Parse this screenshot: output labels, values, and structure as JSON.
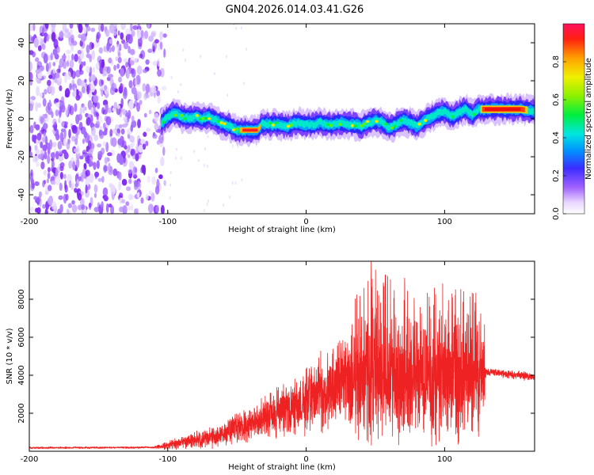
{
  "title": "GN04.2026.014.03.41.G26",
  "colors": {
    "scatter": "#9b3cff",
    "line": "#ee2222",
    "frame": "#000000"
  },
  "chart_data": [
    {
      "type": "heatmap",
      "xlabel": "Height of straight line (km)",
      "ylabel": "Frequency (Hz)",
      "xlim": [
        -200,
        165
      ],
      "ylim": [
        -50,
        50
      ],
      "xticks": [
        -200,
        -100,
        0,
        100
      ],
      "xtick_labels": [
        "-200",
        "-100",
        "0",
        "100"
      ],
      "yticks": [
        -40,
        -20,
        0,
        20,
        40
      ],
      "ytick_labels": [
        "-40",
        "-20",
        "0",
        "20",
        "40"
      ],
      "noise_region_x": [
        -200,
        -102
      ],
      "ridge": [
        [
          -105,
          -3
        ],
        [
          -100,
          1
        ],
        [
          -95,
          3
        ],
        [
          -90,
          1
        ],
        [
          -85,
          0
        ],
        [
          -80,
          1
        ],
        [
          -75,
          0
        ],
        [
          -70,
          1
        ],
        [
          -65,
          -1
        ],
        [
          -60,
          -3
        ],
        [
          -55,
          -4
        ],
        [
          -50,
          -6
        ],
        [
          -45,
          -6
        ],
        [
          -40,
          -6
        ],
        [
          -35,
          -6
        ],
        [
          -32,
          -3
        ],
        [
          -25,
          -3
        ],
        [
          -20,
          -3
        ],
        [
          -15,
          -4
        ],
        [
          -10,
          -3
        ],
        [
          -5,
          -2
        ],
        [
          0,
          -3
        ],
        [
          5,
          -3
        ],
        [
          10,
          -2
        ],
        [
          15,
          -3
        ],
        [
          20,
          -3
        ],
        [
          25,
          -2
        ],
        [
          30,
          -3
        ],
        [
          35,
          -3
        ],
        [
          40,
          -4
        ],
        [
          45,
          -2
        ],
        [
          50,
          -1
        ],
        [
          55,
          -2
        ],
        [
          60,
          -5
        ],
        [
          65,
          -3
        ],
        [
          70,
          -1
        ],
        [
          75,
          -2
        ],
        [
          80,
          -4
        ],
        [
          85,
          -1
        ],
        [
          90,
          1
        ],
        [
          95,
          3
        ],
        [
          100,
          4
        ],
        [
          105,
          1
        ],
        [
          110,
          3
        ],
        [
          115,
          5
        ],
        [
          120,
          2
        ],
        [
          125,
          5
        ],
        [
          135,
          5
        ],
        [
          145,
          5
        ],
        [
          155,
          5
        ],
        [
          165,
          4
        ]
      ],
      "colorbar": {
        "label": "Normalized spectral amplitude",
        "range": [
          0,
          1
        ],
        "ticks": [
          0.0,
          0.2,
          0.4,
          0.6,
          0.8
        ],
        "tick_labels": [
          "0.0",
          "0.2",
          "0.4",
          "0.6",
          "0.8"
        ]
      }
    },
    {
      "type": "line",
      "xlabel": "Height of straight line (km)",
      "ylabel": "SNR (10 * v/v)",
      "xlim": [
        -200,
        165
      ],
      "ylim": [
        0,
        10000
      ],
      "xticks": [
        -200,
        -100,
        0,
        100
      ],
      "xtick_labels": [
        "-200",
        "-100",
        "0",
        "100"
      ],
      "yticks": [
        2000,
        4000,
        6000,
        8000
      ],
      "ytick_labels": [
        "2000",
        "4000",
        "6000",
        "8000"
      ],
      "series": [
        {
          "name": "SNR",
          "envelope": [
            {
              "x": -200,
              "mean": 180,
              "amp": 60
            },
            {
              "x": -110,
              "mean": 200,
              "amp": 60
            },
            {
              "x": -100,
              "mean": 300,
              "amp": 250
            },
            {
              "x": -90,
              "mean": 500,
              "amp": 400
            },
            {
              "x": -70,
              "mean": 700,
              "amp": 600
            },
            {
              "x": -50,
              "mean": 1200,
              "amp": 1000
            },
            {
              "x": -30,
              "mean": 1700,
              "amp": 1300
            },
            {
              "x": -10,
              "mean": 2300,
              "amp": 1700
            },
            {
              "x": 0,
              "mean": 2700,
              "amp": 1900
            },
            {
              "x": 15,
              "mean": 3300,
              "amp": 2400
            },
            {
              "x": 30,
              "mean": 3800,
              "amp": 3000
            },
            {
              "x": 50,
              "mean": 4000,
              "amp": 3500
            },
            {
              "x": 70,
              "mean": 4000,
              "amp": 3400
            },
            {
              "x": 90,
              "mean": 4000,
              "amp": 3200
            },
            {
              "x": 110,
              "mean": 3900,
              "amp": 3000
            },
            {
              "x": 128,
              "mean": 3700,
              "amp": 2800
            },
            {
              "x": 130,
              "mean": 4200,
              "amp": 250
            },
            {
              "x": 165,
              "mean": 3900,
              "amp": 250
            }
          ],
          "peak": {
            "x": 47,
            "y": 10000
          }
        }
      ]
    }
  ]
}
